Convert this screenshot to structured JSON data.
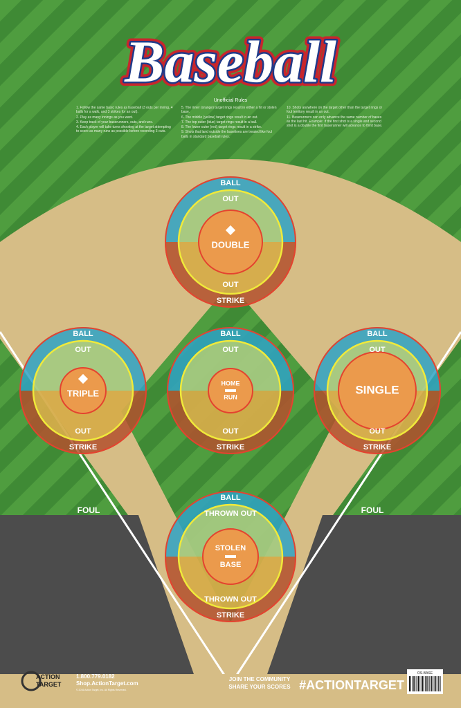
{
  "header": {
    "title": "Baseball",
    "rules_title": "Unofficial Rules",
    "rules": [
      "1. Follow the same basic rules as baseball (3 outs per inning, 4 balls for a walk, and 3 strikes for an out).",
      "2. Play as many innings as you want.",
      "3. Keep track of your baserunners, outs, and runs.",
      "4. Each player will take turns shooting at the target attempting to score as many runs as possible before recording 3 outs.",
      "5. The inner (orange) target rings result in either a hit or stolen base.",
      "6. The middle (yellow) target rings result in an out.",
      "7. The top outer (blue) target rings result in a ball.",
      "8. The lower outer (red) target rings result in a strike.",
      "9. Shots that land outside the baselines are treated like foul balls in standard baseball rules.",
      "10. Shots anywhere on the target other than the target rings or foul territory result in an out.",
      "11. Baserunners can only advance the same number of bases as the last hit. Example: If the first shot is a single and second shot is a double the first baserunner will advance to third base."
    ]
  },
  "targets": [
    {
      "ball": "BALL",
      "out_top": "OUT",
      "center": [
        "DOUBLE"
      ],
      "out_bottom": "OUT",
      "strike": "STRIKE"
    },
    {
      "ball": "BALL",
      "out_top": "OUT",
      "center": [
        "TRIPLE"
      ],
      "out_bottom": "OUT",
      "strike": "STRIKE"
    },
    {
      "ball": "BALL",
      "out_top": "OUT",
      "center": [
        "HOME",
        "RUN"
      ],
      "out_bottom": "OUT",
      "strike": "STRIKE"
    },
    {
      "ball": "BALL",
      "out_top": "OUT",
      "center": [
        "SINGLE"
      ],
      "out_bottom": "OUT",
      "strike": "STRIKE"
    },
    {
      "ball": "BALL",
      "out_top": "THROWN OUT",
      "center": [
        "STOLEN",
        "BASE"
      ],
      "out_bottom": "THROWN OUT",
      "strike": "STRIKE"
    }
  ],
  "field": {
    "foul_left": "FOUL",
    "foul_right": "FOUL"
  },
  "footer": {
    "brand_top": "ACTION",
    "brand_bottom": "TARGET",
    "phone": "1.800.779.0182",
    "site": "Shop.ActionTarget.com",
    "copyright": "© 2016 Action Target, Inc. All Rights Reserved.",
    "community": "JOIN THE COMMUNITY",
    "share": "SHARE YOUR SCORES",
    "hashtag": "#ACTIONTARGET",
    "code": "OS-BASE"
  }
}
